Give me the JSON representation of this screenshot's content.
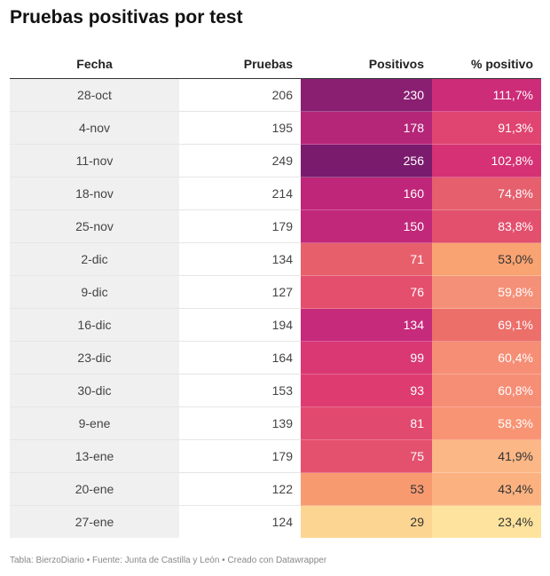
{
  "title": "Pruebas positivas por test",
  "chart_data": {
    "type": "table",
    "title": "Pruebas positivas por test",
    "columns": [
      "Fecha",
      "Pruebas",
      "Positivos",
      "% positivo"
    ],
    "rows": [
      [
        "28-oct",
        "206",
        "230",
        "111,7%"
      ],
      [
        "4-nov",
        "195",
        "178",
        "91,3%"
      ],
      [
        "11-nov",
        "249",
        "256",
        "102,8%"
      ],
      [
        "18-nov",
        "214",
        "160",
        "74,8%"
      ],
      [
        "25-nov",
        "179",
        "150",
        "83,8%"
      ],
      [
        "2-dic",
        "134",
        "71",
        "53,0%"
      ],
      [
        "9-dic",
        "127",
        "76",
        "59,8%"
      ],
      [
        "16-dic",
        "194",
        "134",
        "69,1%"
      ],
      [
        "23-dic",
        "164",
        "99",
        "60,4%"
      ],
      [
        "30-dic",
        "153",
        "93",
        "60,8%"
      ],
      [
        "9-ene",
        "139",
        "81",
        "58,3%"
      ],
      [
        "13-ene",
        "179",
        "75",
        "41,9%"
      ],
      [
        "20-ene",
        "122",
        "53",
        "43,4%"
      ],
      [
        "27-ene",
        "124",
        "29",
        "23,4%"
      ]
    ],
    "heat_colors": {
      "positivos": [
        "#8a1f72",
        "#b52578",
        "#7a1b6e",
        "#bf2679",
        "#c1287a",
        "#e85f6c",
        "#e44f6e",
        "#c62a7a",
        "#d93872",
        "#de3c71",
        "#e2496f",
        "#e4516e",
        "#f79a70",
        "#fdd592"
      ],
      "porcentaje": [
        "#cc2c78",
        "#e04470",
        "#d53174",
        "#e55f6d",
        "#e3506e",
        "#f8a371",
        "#f49078",
        "#ec6f6a",
        "#f68e76",
        "#f68e76",
        "#f89474",
        "#fbb785",
        "#fbb280",
        "#fde39e"
      ]
    }
  },
  "footer": "Tabla: BierzoDiario • Fuente: Junta de Castilla y León • Creado con Datawrapper"
}
